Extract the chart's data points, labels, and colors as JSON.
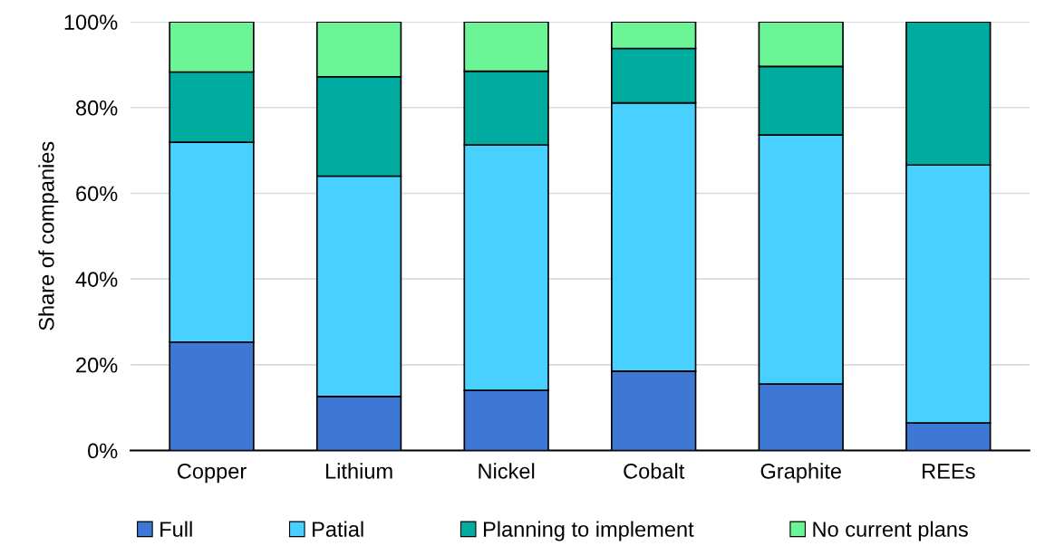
{
  "chart_data": {
    "type": "bar",
    "stacked": true,
    "ylabel": "Share of companies",
    "categories": [
      "Copper",
      "Lithium",
      "Nickel",
      "Cobalt",
      "Graphite",
      "REEs"
    ],
    "series": [
      {
        "name": "Full",
        "color": "#3f78d4",
        "values": [
          25.3,
          12.6,
          14.0,
          18.5,
          15.5,
          6.4
        ]
      },
      {
        "name": "Patial",
        "color": "#48d1ff",
        "values": [
          46.6,
          51.4,
          57.3,
          62.6,
          58.1,
          60.2
        ]
      },
      {
        "name": "Planning to implement",
        "color": "#00ab9f",
        "values": [
          16.4,
          23.2,
          17.2,
          12.7,
          16.0,
          33.4
        ]
      },
      {
        "name": "No current plans",
        "color": "#6cf597",
        "values": [
          11.7,
          12.8,
          11.5,
          6.2,
          10.4,
          null
        ]
      }
    ],
    "ylim": [
      0,
      100
    ],
    "yticks": [
      {
        "value": 0,
        "label": "0%"
      },
      {
        "value": 20,
        "label": "20%"
      },
      {
        "value": 40,
        "label": "40%"
      },
      {
        "value": 60,
        "label": "60%"
      },
      {
        "value": 80,
        "label": "80%"
      },
      {
        "value": 100,
        "label": "100%"
      }
    ],
    "grid": "y",
    "legend": "bottom"
  }
}
